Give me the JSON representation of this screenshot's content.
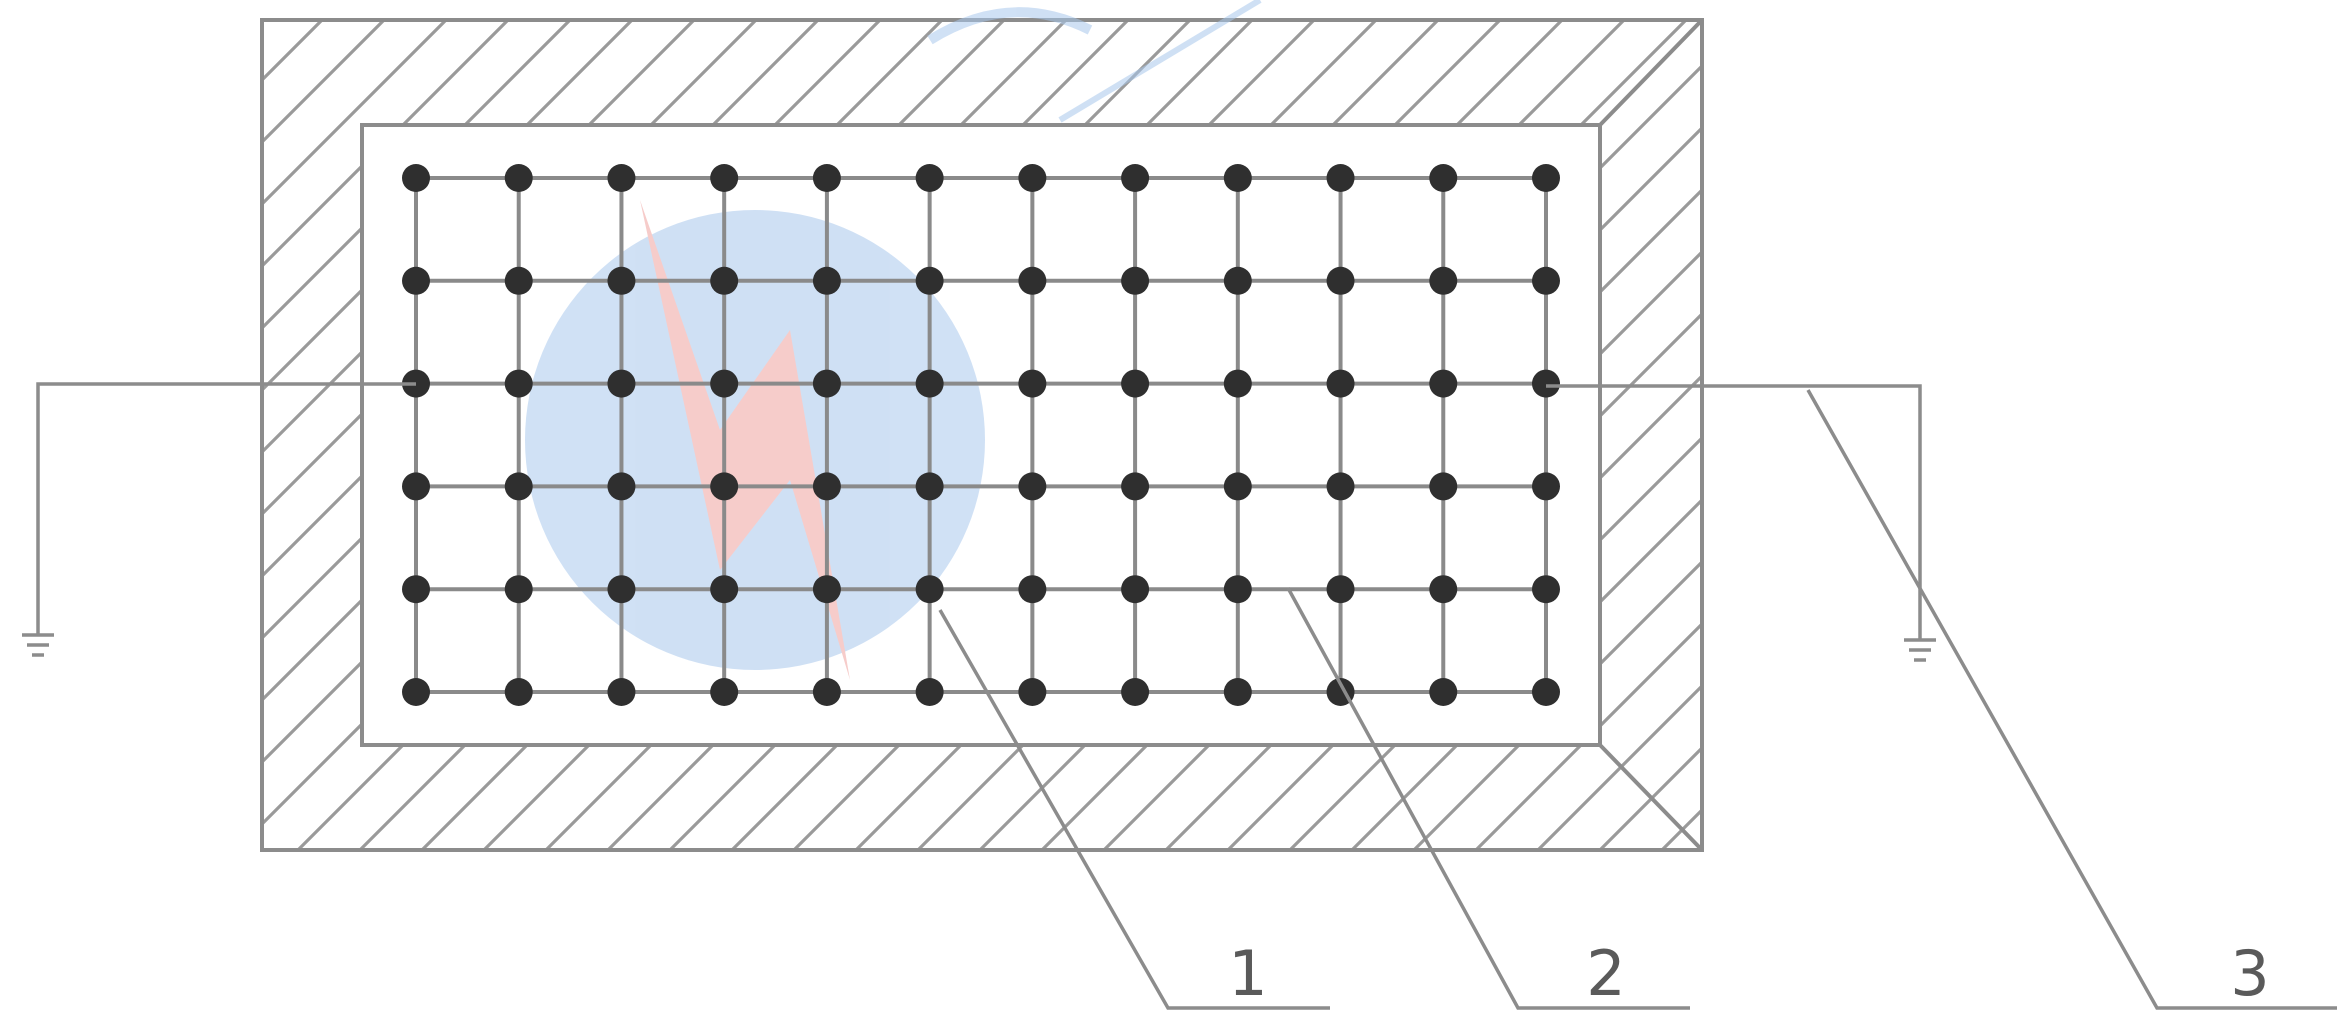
{
  "figure": {
    "callouts": [
      {
        "id": "1",
        "label": "1"
      },
      {
        "id": "2",
        "label": "2"
      },
      {
        "id": "3",
        "label": "3"
      }
    ],
    "grid": {
      "columns": 12,
      "rows": 6
    },
    "watermark": {
      "kind": "logo"
    }
  }
}
